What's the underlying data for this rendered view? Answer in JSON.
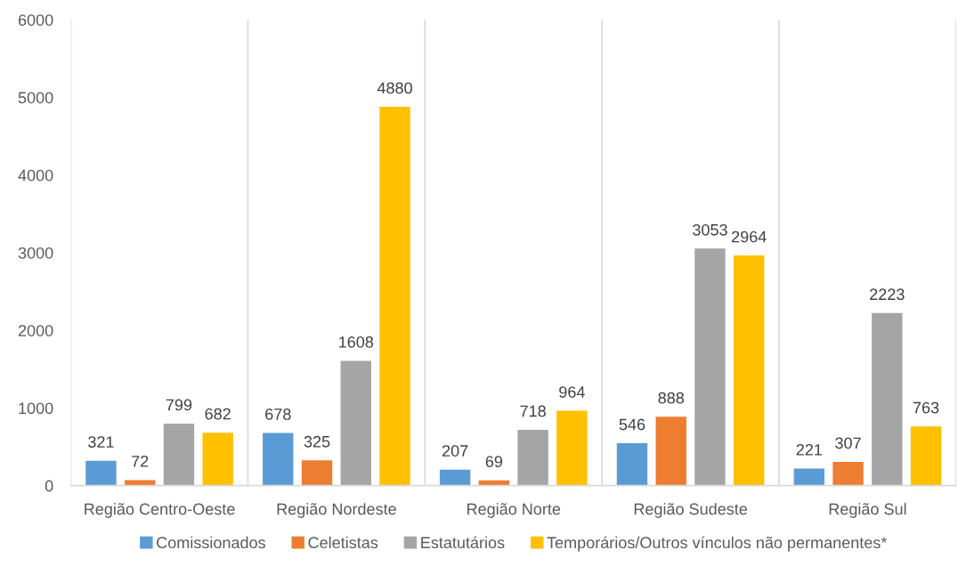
{
  "chart_data": {
    "type": "bar",
    "categories": [
      "Região Centro-Oeste",
      "Região Nordeste",
      "Região Norte",
      "Região Sudeste",
      "Região Sul"
    ],
    "series": [
      {
        "name": "Comissionados",
        "color": "#5b9bd5",
        "values": [
          321,
          678,
          207,
          546,
          221
        ]
      },
      {
        "name": "Celetistas",
        "color": "#ed7d31",
        "values": [
          72,
          325,
          69,
          888,
          307
        ]
      },
      {
        "name": "Estatutários",
        "color": "#a5a5a5",
        "values": [
          799,
          1608,
          718,
          3053,
          2223
        ]
      },
      {
        "name": "Temporários/Outros vínculos não permanentes*",
        "color": "#ffc000",
        "values": [
          682,
          4880,
          964,
          2964,
          763
        ]
      }
    ],
    "ylim": [
      0,
      6000
    ],
    "yticks": [
      0,
      1000,
      2000,
      3000,
      4000,
      5000,
      6000
    ],
    "grid": "x",
    "legend": "bottom",
    "data_labels": true
  }
}
